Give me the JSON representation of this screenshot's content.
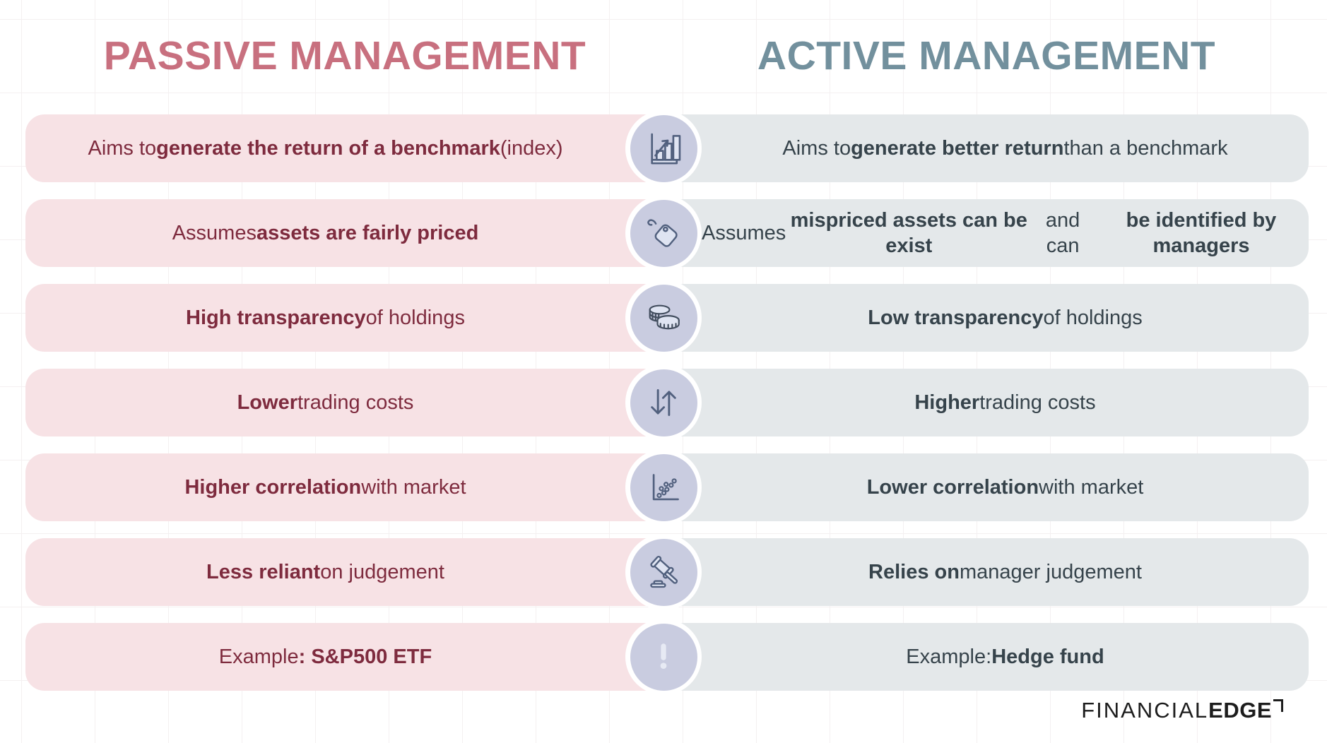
{
  "headers": {
    "passive": "PASSIVE MANAGEMENT",
    "active": "ACTIVE MANAGEMENT"
  },
  "rows": [
    {
      "icon": "bar-chart-growth-icon",
      "passive": [
        {
          "t": "Aims to ",
          "b": false
        },
        {
          "t": "generate the return of a benchmark",
          "b": true
        },
        {
          "t": " (index)",
          "b": false
        }
      ],
      "active": [
        {
          "t": "Aims to ",
          "b": false
        },
        {
          "t": "generate better return",
          "b": true
        },
        {
          "t": " than a benchmark",
          "b": false
        }
      ]
    },
    {
      "icon": "price-tag-icon",
      "passive": [
        {
          "t": "Assumes ",
          "b": false
        },
        {
          "t": "assets are fairly priced",
          "b": true
        }
      ],
      "active": [
        {
          "t": "Assumes ",
          "b": false
        },
        {
          "t": "mispriced assets can be exist",
          "b": true
        },
        {
          "t": " and can\n",
          "b": false
        },
        {
          "t": "be identified by managers",
          "b": true
        }
      ]
    },
    {
      "icon": "coins-icon",
      "passive": [
        {
          "t": "High transparency",
          "b": true
        },
        {
          "t": " of holdings",
          "b": false
        }
      ],
      "active": [
        {
          "t": "Low transparency",
          "b": true
        },
        {
          "t": " of holdings",
          "b": false
        }
      ]
    },
    {
      "icon": "swap-arrows-icon",
      "passive": [
        {
          "t": "Lower",
          "b": true
        },
        {
          "t": " trading costs",
          "b": false
        }
      ],
      "active": [
        {
          "t": "Higher",
          "b": true
        },
        {
          "t": " trading costs",
          "b": false
        }
      ]
    },
    {
      "icon": "scatter-plot-icon",
      "passive": [
        {
          "t": "Higher correlation",
          "b": true
        },
        {
          "t": " with market",
          "b": false
        }
      ],
      "active": [
        {
          "t": "Lower correlation",
          "b": true
        },
        {
          "t": " with market",
          "b": false
        }
      ]
    },
    {
      "icon": "gavel-icon",
      "passive": [
        {
          "t": "Less reliant",
          "b": true
        },
        {
          "t": " on judgement",
          "b": false
        }
      ],
      "active": [
        {
          "t": "Relies on",
          "b": true
        },
        {
          "t": " manager judgement",
          "b": false
        }
      ]
    },
    {
      "icon": "exclamation-icon",
      "passive": [
        {
          "t": "Example",
          "b": false
        },
        {
          "t": ": S&P500 ETF",
          "b": true
        }
      ],
      "active": [
        {
          "t": "Example: ",
          "b": false
        },
        {
          "t": "Hedge fund",
          "b": true
        }
      ]
    }
  ],
  "footer": {
    "brand_regular": "FINANCIAL",
    "brand_bold": "EDGE"
  },
  "palette": {
    "passive_header": "#c8707f",
    "active_header": "#72909d",
    "passive_band": "#f7e2e5",
    "active_band": "#e4e8ea",
    "passive_text": "#7e2b3e",
    "active_text": "#36434b",
    "circle_fill": "#c9cce0",
    "icon_stroke": "#51607e",
    "icon_fill": "#dfe4f2",
    "exclaim_fill": "#e7eaf4",
    "brand_color": "#1d1d1d",
    "grid_line": "#f4f0f1"
  }
}
